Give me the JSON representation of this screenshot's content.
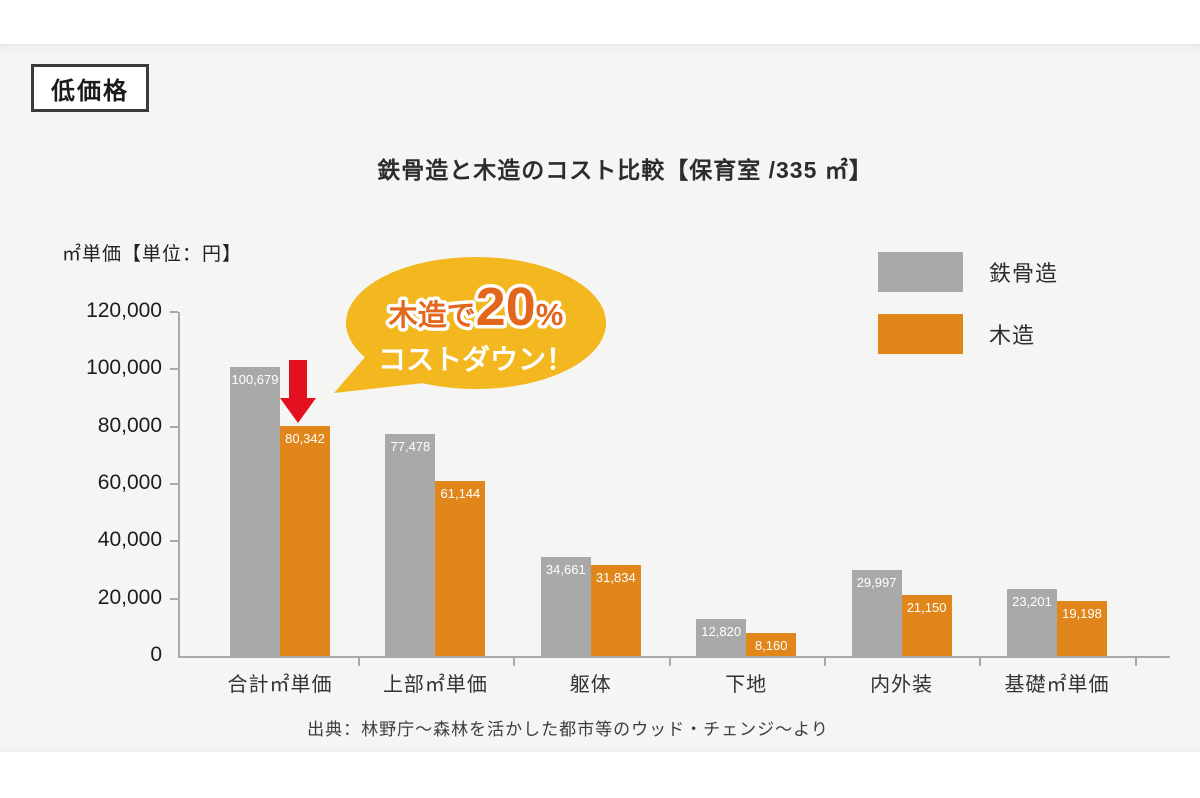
{
  "page": {
    "background": "#ffffff",
    "panel_background": "#f5f5f4"
  },
  "badge": {
    "label": "低価格"
  },
  "title": "鉄骨造と木造のコスト比較【保育室 /335 ㎡】",
  "ylabel": "㎡単価【単位：円】",
  "legend": [
    {
      "label": "鉄骨造",
      "color": "#a9a9a9"
    },
    {
      "label": "木造",
      "color": "#e0861a"
    }
  ],
  "callout": {
    "line1_prefix": "木造で",
    "line1_number": "20",
    "line1_percent": "%",
    "line2": "コストダウン！",
    "bubble_color": "#f3b71f",
    "text_orange": "#e2661c",
    "arrow_color": "#e3101f"
  },
  "source": "出典：林野庁〜森林を活かした都市等のウッド・チェンジ〜より",
  "chart_data": {
    "type": "bar",
    "title": "鉄骨造と木造のコスト比較【保育室 /335 ㎡】",
    "ylabel": "㎡単価【単位：円】",
    "categories": [
      "合計㎡単価",
      "上部㎡単価",
      "躯体",
      "下地",
      "内外装",
      "基礎㎡単価"
    ],
    "series": [
      {
        "name": "鉄骨造",
        "color": "#a9a9a9",
        "values": [
          100679,
          77478,
          34661,
          12820,
          29997,
          23201
        ],
        "labels": [
          "100,679",
          "77,478",
          "34,661",
          "12,820",
          "29,997",
          "23,201"
        ]
      },
      {
        "name": "木造",
        "color": "#e0861a",
        "values": [
          80342,
          61144,
          31834,
          8160,
          21150,
          19198
        ],
        "labels": [
          "80,342",
          "61,144",
          "31,834",
          "8,160",
          "21,150",
          "19,198"
        ]
      }
    ],
    "ylim": [
      0,
      120000
    ],
    "yticks": [
      "0",
      "20,000",
      "40,000",
      "60,000",
      "80,000",
      "100,000",
      "120,000"
    ],
    "grid": false,
    "legend_position": "top-right",
    "annotation": "木造で20% コストダウン！"
  }
}
